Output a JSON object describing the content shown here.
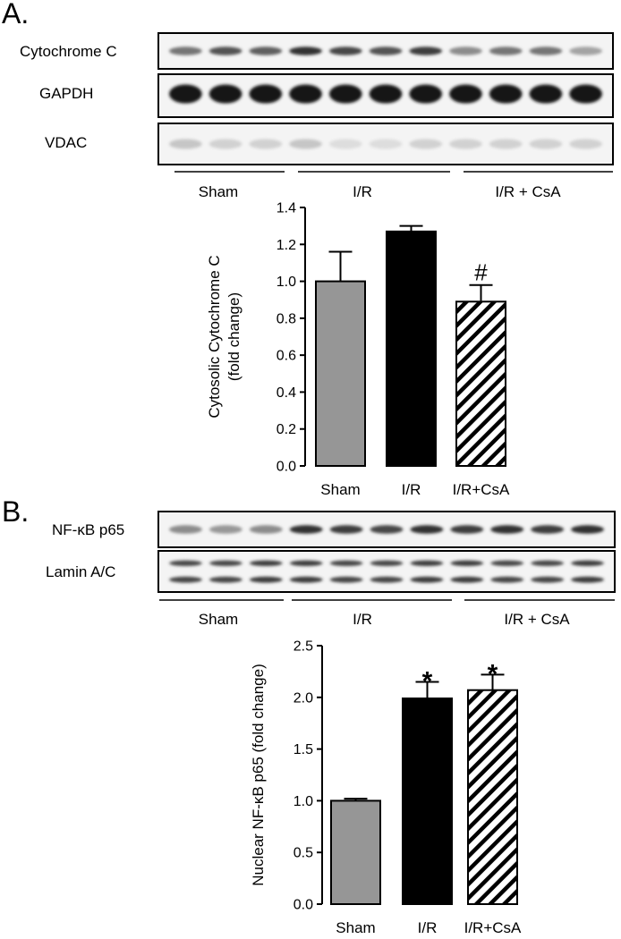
{
  "figure": {
    "panelA": {
      "letter": "A.",
      "blots": [
        {
          "label": "Cytochrome C",
          "band": "single-dark",
          "intensities": [
            0.6,
            0.75,
            0.7,
            0.9,
            0.8,
            0.75,
            0.85,
            0.5,
            0.6,
            0.6,
            0.4
          ]
        },
        {
          "label": "GAPDH",
          "band": "thick",
          "intensities": [
            1,
            1,
            1,
            1,
            1,
            1,
            1,
            1,
            1,
            1,
            1
          ]
        },
        {
          "label": "VDAC",
          "band": "faint",
          "intensities": [
            0.25,
            0.2,
            0.2,
            0.25,
            0.15,
            0.15,
            0.2,
            0.2,
            0.2,
            0.2,
            0.2
          ]
        }
      ],
      "groups": [
        "Sham",
        "I/R",
        "I/R + CsA"
      ]
    },
    "panelB": {
      "letter": "B.",
      "blots": [
        {
          "label": "NF-κB p65",
          "band": "single-dark",
          "intensities": [
            0.5,
            0.45,
            0.5,
            0.9,
            0.85,
            0.8,
            0.9,
            0.85,
            0.9,
            0.85,
            0.9
          ]
        },
        {
          "label": "Lamin A/C",
          "band": "double",
          "intensities": [
            0.8,
            0.8,
            0.85,
            0.85,
            0.8,
            0.8,
            0.85,
            0.85,
            0.8,
            0.8,
            0.85
          ]
        }
      ],
      "groups": [
        "Sham",
        "I/R",
        "I/R + CsA"
      ]
    },
    "colors": {
      "sham": "#969696",
      "ir": "#000000",
      "ircsa": "hatch"
    }
  },
  "chart_data": [
    {
      "type": "bar",
      "categories": [
        "Sham",
        "I/R",
        "I/R+CsA"
      ],
      "values": [
        1.0,
        1.27,
        0.89
      ],
      "errors": [
        0.16,
        0.03,
        0.09
      ],
      "significance": [
        "",
        "",
        "#"
      ],
      "ylabel": "Cytosolic Cytochrome C\n(fold change)",
      "ylim": [
        0.0,
        1.4
      ],
      "yticks": [
        "0.0",
        "0.2",
        "0.4",
        "0.6",
        "0.8",
        "1.0",
        "1.2",
        "1.4"
      ]
    },
    {
      "type": "bar",
      "categories": [
        "Sham",
        "I/R",
        "I/R+CsA"
      ],
      "values": [
        1.0,
        1.99,
        2.07
      ],
      "errors": [
        0.02,
        0.16,
        0.15
      ],
      "significance": [
        "",
        "*",
        "*"
      ],
      "ylabel": "Nuclear NF-κB p65 (fold change)",
      "ylim": [
        0.0,
        2.5
      ],
      "yticks": [
        "0.0",
        "0.5",
        "1.0",
        "1.5",
        "2.0",
        "2.5"
      ]
    }
  ]
}
